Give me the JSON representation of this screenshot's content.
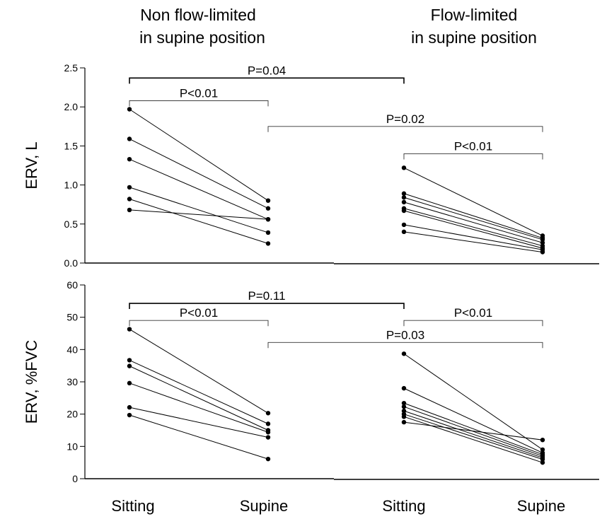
{
  "headings": {
    "left": [
      "Non flow-limited",
      "in supine position"
    ],
    "right": [
      "Flow-limited",
      "in supine position"
    ]
  },
  "x_categories": [
    "Sitting",
    "Supine",
    "Sitting",
    "Supine"
  ],
  "chart_data": [
    {
      "type": "line",
      "panel": "top",
      "ylabel": "ERV, L",
      "ylim": [
        0,
        2.5
      ],
      "yticks": [
        "0.0",
        "0.5",
        "1.0",
        "1.5",
        "2.0",
        "2.5"
      ],
      "groups": [
        {
          "name": "Non flow-limited in supine position",
          "x": [
            "Sitting",
            "Supine"
          ],
          "subjects": [
            [
              1.97,
              0.8
            ],
            [
              1.59,
              0.7
            ],
            [
              1.33,
              0.56
            ],
            [
              0.97,
              0.39
            ],
            [
              0.82,
              0.25
            ],
            [
              0.68,
              0.56
            ]
          ]
        },
        {
          "name": "Flow-limited in supine position",
          "x": [
            "Sitting",
            "Supine"
          ],
          "subjects": [
            [
              1.22,
              0.35
            ],
            [
              0.89,
              0.32
            ],
            [
              0.84,
              0.3
            ],
            [
              0.78,
              0.26
            ],
            [
              0.7,
              0.22
            ],
            [
              0.67,
              0.19
            ],
            [
              0.49,
              0.17
            ],
            [
              0.4,
              0.14
            ]
          ]
        }
      ],
      "annotations": [
        {
          "text": "P=0.04",
          "from": 0,
          "to": 2,
          "y": 2.37,
          "heavy": true
        },
        {
          "text": "P<0.01",
          "from": 0,
          "to": 1,
          "y": 2.08,
          "heavy": false
        },
        {
          "text": "P=0.02",
          "from": 1,
          "to": 3,
          "y": 1.75,
          "heavy": false
        },
        {
          "text": "P<0.01",
          "from": 2,
          "to": 3,
          "y": 1.4,
          "heavy": false
        }
      ]
    },
    {
      "type": "line",
      "panel": "bottom",
      "ylabel": "ERV, %FVC",
      "ylim": [
        0,
        60
      ],
      "yticks": [
        "0",
        "10",
        "20",
        "30",
        "40",
        "50",
        "60"
      ],
      "groups": [
        {
          "name": "Non flow-limited in supine position",
          "x": [
            "Sitting",
            "Supine"
          ],
          "subjects": [
            [
              46.3,
              20.3
            ],
            [
              36.7,
              17.0
            ],
            [
              34.9,
              15.0
            ],
            [
              29.6,
              14.4
            ],
            [
              22.1,
              12.8
            ],
            [
              19.7,
              6.1
            ]
          ]
        },
        {
          "name": "Flow-limited in supine position",
          "x": [
            "Sitting",
            "Supine"
          ],
          "subjects": [
            [
              38.7,
              9.0
            ],
            [
              28.0,
              8.0
            ],
            [
              23.4,
              7.5
            ],
            [
              22.3,
              7.0
            ],
            [
              21.0,
              6.5
            ],
            [
              20.0,
              6.0
            ],
            [
              19.2,
              5.0
            ],
            [
              17.5,
              12.0
            ]
          ]
        }
      ],
      "annotations": [
        {
          "text": "P=0.11",
          "from": 0,
          "to": 2,
          "y": 54.3,
          "heavy": true
        },
        {
          "text": "P<0.01",
          "from": 0,
          "to": 1,
          "y": 49.0,
          "heavy": false
        },
        {
          "text": "P<0.01",
          "from": 2,
          "to": 3,
          "y": 49.0,
          "heavy": false
        },
        {
          "text": "P=0.03",
          "from": 1,
          "to": 3,
          "y": 42.2,
          "heavy": false
        }
      ]
    }
  ]
}
